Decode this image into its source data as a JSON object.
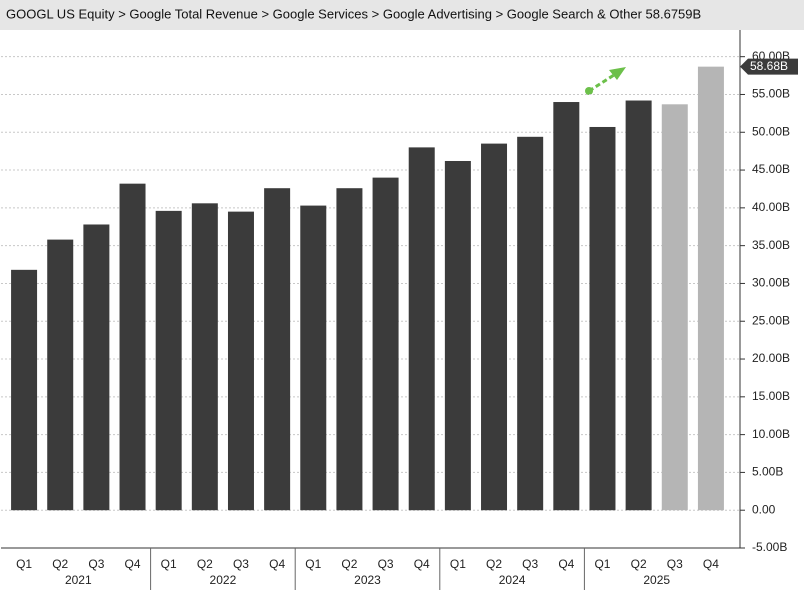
{
  "chart_data": {
    "type": "bar",
    "title": "GOOGL US Equity > Google Total Revenue > Google Services > Google Advertising > Google Search & Other  58.6759B",
    "categories": [
      "Q1",
      "Q2",
      "Q3",
      "Q4",
      "Q1",
      "Q2",
      "Q3",
      "Q4",
      "Q1",
      "Q2",
      "Q3",
      "Q4",
      "Q1",
      "Q2",
      "Q3",
      "Q4",
      "Q1",
      "Q2",
      "Q3",
      "Q4"
    ],
    "years": [
      "2021",
      "2022",
      "2023",
      "2024",
      "2025"
    ],
    "values": [
      31.8,
      35.8,
      37.8,
      43.2,
      39.6,
      40.6,
      39.5,
      42.6,
      40.3,
      42.6,
      44.0,
      48.0,
      46.2,
      48.5,
      49.4,
      54.0,
      50.7,
      54.2,
      53.7,
      58.68
    ],
    "colors": [
      "#3b3b3b",
      "#3b3b3b",
      "#3b3b3b",
      "#3b3b3b",
      "#3b3b3b",
      "#3b3b3b",
      "#3b3b3b",
      "#3b3b3b",
      "#3b3b3b",
      "#3b3b3b",
      "#3b3b3b",
      "#3b3b3b",
      "#3b3b3b",
      "#3b3b3b",
      "#3b3b3b",
      "#3b3b3b",
      "#3b3b3b",
      "#3b3b3b",
      "#b5b5b5",
      "#b5b5b5"
    ],
    "last_value_label": "58.68B",
    "ylim": [
      -5,
      63
    ],
    "yticks": [
      {
        "value": -5,
        "label": "-5.00B"
      },
      {
        "value": 0,
        "label": "0.00"
      },
      {
        "value": 5,
        "label": "5.00B"
      },
      {
        "value": 10,
        "label": "10.00B"
      },
      {
        "value": 15,
        "label": "15.00B"
      },
      {
        "value": 20,
        "label": "20.00B"
      },
      {
        "value": 25,
        "label": "25.00B"
      },
      {
        "value": 30,
        "label": "30.00B"
      },
      {
        "value": 35,
        "label": "35.00B"
      },
      {
        "value": 40,
        "label": "40.00B"
      },
      {
        "value": 45,
        "label": "45.00B"
      },
      {
        "value": 50,
        "label": "50.00B"
      },
      {
        "value": 55,
        "label": "55.00B"
      },
      {
        "value": 60,
        "label": "60.00B"
      }
    ],
    "grid": true
  }
}
